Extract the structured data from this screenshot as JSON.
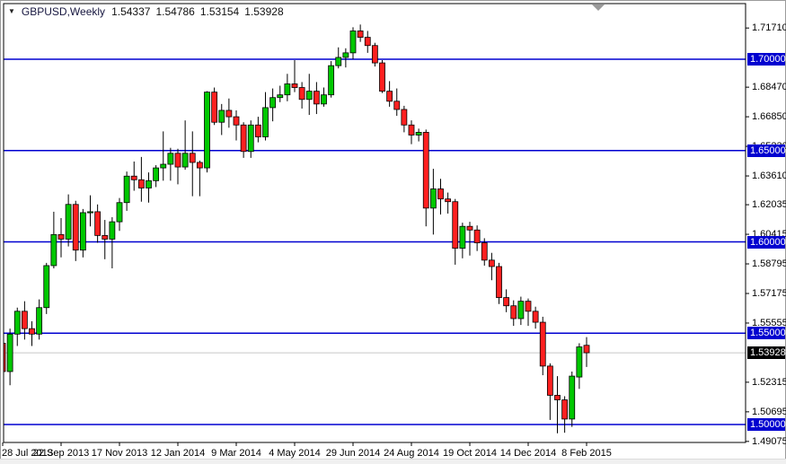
{
  "window": {
    "title_symbol": "GBPUSD,Weekly",
    "ohlc_readout": {
      "open": "1.54337",
      "high": "1.54786",
      "low": "1.53154",
      "close": "1.53928"
    }
  },
  "colors": {
    "background": "#FFFFFF",
    "frame": "#000000",
    "candle_up_fill": "#00C800",
    "candle_down_fill": "#FF2020",
    "candle_border": "#000000",
    "wick": "#000000",
    "level_line": "#0000D0",
    "level_label_bg": "#0000D0",
    "current_price_line": "#C8C8C8",
    "current_price_label_bg": "#000000",
    "axis_text": "#000000",
    "shift_marker": "#9A9A9A"
  },
  "y_axis": {
    "plain_labels": [
      {
        "text": "1.71710",
        "price": 1.7171
      },
      {
        "text": "1.68470",
        "price": 1.6847
      },
      {
        "text": "1.66850",
        "price": 1.6685
      },
      {
        "text": "1.65230",
        "price": 1.6523
      },
      {
        "text": "1.63610",
        "price": 1.6361
      },
      {
        "text": "1.62035",
        "price": 1.62035
      },
      {
        "text": "1.60415",
        "price": 1.60415
      },
      {
        "text": "1.58795",
        "price": 1.58795
      },
      {
        "text": "1.57175",
        "price": 1.57175
      },
      {
        "text": "1.55555",
        "price": 1.55555
      },
      {
        "text": "1.52315",
        "price": 1.52315
      },
      {
        "text": "1.50695",
        "price": 1.50695
      },
      {
        "text": "1.49075",
        "price": 1.49075
      }
    ],
    "level_labels": [
      {
        "text": "1.70000",
        "price": 1.7
      },
      {
        "text": "1.65000",
        "price": 1.65
      },
      {
        "text": "1.60000",
        "price": 1.6
      },
      {
        "text": "1.55000",
        "price": 1.55
      },
      {
        "text": "1.50000",
        "price": 1.5
      }
    ],
    "current_label": {
      "text": "1.53928",
      "price": 1.53928
    }
  },
  "x_axis": {
    "labels": [
      {
        "text": "28 Jul 2013",
        "week": 0
      },
      {
        "text": "22 Sep 2013",
        "week": 8
      },
      {
        "text": "17 Nov 2013",
        "week": 16
      },
      {
        "text": "12 Jan 2014",
        "week": 24
      },
      {
        "text": "9 Mar 2014",
        "week": 32
      },
      {
        "text": "4 May 2014",
        "week": 40
      },
      {
        "text": "29 Jun 2014",
        "week": 48
      },
      {
        "text": "24 Aug 2014",
        "week": 56
      },
      {
        "text": "19 Oct 2014",
        "week": 64
      },
      {
        "text": "14 Dec 2014",
        "week": 72
      },
      {
        "text": "8 Feb 2015",
        "week": 80
      }
    ]
  },
  "chart_data": {
    "type": "candlestick",
    "symbol": "GBPUSD",
    "timeframe": "Weekly",
    "title": "GBPUSD,Weekly 1.54337 1.54786 1.53154 1.53928",
    "grid": false,
    "legend_position": "none",
    "y_axis_range": [
      1.4885,
      1.73
    ],
    "horizontal_levels": [
      1.7,
      1.65,
      1.6,
      1.55,
      1.5
    ],
    "current_price": 1.53928,
    "candles": [
      {
        "d": "2013-07-28",
        "o": 1.5445,
        "h": 1.5475,
        "l": 1.524,
        "c": 1.529
      },
      {
        "d": "2013-08-04",
        "o": 1.529,
        "h": 1.5525,
        "l": 1.5215,
        "c": 1.5495
      },
      {
        "d": "2013-08-11",
        "o": 1.5495,
        "h": 1.564,
        "l": 1.543,
        "c": 1.562
      },
      {
        "d": "2013-08-18",
        "o": 1.562,
        "h": 1.5675,
        "l": 1.5465,
        "c": 1.5525
      },
      {
        "d": "2013-08-25",
        "o": 1.5525,
        "h": 1.5565,
        "l": 1.543,
        "c": 1.5495
      },
      {
        "d": "2013-09-01",
        "o": 1.5495,
        "h": 1.5685,
        "l": 1.5465,
        "c": 1.564
      },
      {
        "d": "2013-09-08",
        "o": 1.564,
        "h": 1.5885,
        "l": 1.5605,
        "c": 1.587
      },
      {
        "d": "2013-09-15",
        "o": 1.587,
        "h": 1.6165,
        "l": 1.5855,
        "c": 1.604
      },
      {
        "d": "2013-09-22",
        "o": 1.604,
        "h": 1.613,
        "l": 1.5915,
        "c": 1.6015
      },
      {
        "d": "2013-09-29",
        "o": 1.6015,
        "h": 1.626,
        "l": 1.5975,
        "c": 1.6205
      },
      {
        "d": "2013-10-06",
        "o": 1.6205,
        "h": 1.6225,
        "l": 1.5895,
        "c": 1.5955
      },
      {
        "d": "2013-10-13",
        "o": 1.5955,
        "h": 1.618,
        "l": 1.5915,
        "c": 1.616
      },
      {
        "d": "2013-10-20",
        "o": 1.616,
        "h": 1.6255,
        "l": 1.6085,
        "c": 1.6165
      },
      {
        "d": "2013-10-27",
        "o": 1.6165,
        "h": 1.6205,
        "l": 1.5995,
        "c": 1.6035
      },
      {
        "d": "2013-11-03",
        "o": 1.6035,
        "h": 1.612,
        "l": 1.5905,
        "c": 1.6015
      },
      {
        "d": "2013-11-10",
        "o": 1.6015,
        "h": 1.6135,
        "l": 1.5855,
        "c": 1.611
      },
      {
        "d": "2013-11-17",
        "o": 1.611,
        "h": 1.624,
        "l": 1.606,
        "c": 1.6215
      },
      {
        "d": "2013-11-24",
        "o": 1.6215,
        "h": 1.6385,
        "l": 1.617,
        "c": 1.636
      },
      {
        "d": "2013-12-01",
        "o": 1.636,
        "h": 1.644,
        "l": 1.628,
        "c": 1.634
      },
      {
        "d": "2013-12-08",
        "o": 1.634,
        "h": 1.6465,
        "l": 1.622,
        "c": 1.6295
      },
      {
        "d": "2013-12-15",
        "o": 1.6295,
        "h": 1.638,
        "l": 1.6215,
        "c": 1.6335
      },
      {
        "d": "2013-12-22",
        "o": 1.6335,
        "h": 1.642,
        "l": 1.63,
        "c": 1.6405
      },
      {
        "d": "2013-12-29",
        "o": 1.6405,
        "h": 1.6605,
        "l": 1.6335,
        "c": 1.6425
      },
      {
        "d": "2014-01-05",
        "o": 1.6425,
        "h": 1.6515,
        "l": 1.6335,
        "c": 1.6485
      },
      {
        "d": "2014-01-12",
        "o": 1.6485,
        "h": 1.651,
        "l": 1.6315,
        "c": 1.641
      },
      {
        "d": "2014-01-19",
        "o": 1.641,
        "h": 1.6665,
        "l": 1.6395,
        "c": 1.6485
      },
      {
        "d": "2014-01-26",
        "o": 1.6485,
        "h": 1.6605,
        "l": 1.625,
        "c": 1.6435
      },
      {
        "d": "2014-02-02",
        "o": 1.6435,
        "h": 1.6445,
        "l": 1.625,
        "c": 1.6405
      },
      {
        "d": "2014-02-09",
        "o": 1.6405,
        "h": 1.6825,
        "l": 1.638,
        "c": 1.682
      },
      {
        "d": "2014-02-16",
        "o": 1.682,
        "h": 1.6845,
        "l": 1.664,
        "c": 1.6655
      },
      {
        "d": "2014-02-23",
        "o": 1.6655,
        "h": 1.6755,
        "l": 1.6585,
        "c": 1.672
      },
      {
        "d": "2014-03-02",
        "o": 1.672,
        "h": 1.6785,
        "l": 1.6625,
        "c": 1.6685
      },
      {
        "d": "2014-03-09",
        "o": 1.6685,
        "h": 1.672,
        "l": 1.6555,
        "c": 1.664
      },
      {
        "d": "2014-03-16",
        "o": 1.664,
        "h": 1.6655,
        "l": 1.646,
        "c": 1.6495
      },
      {
        "d": "2014-03-23",
        "o": 1.6495,
        "h": 1.6665,
        "l": 1.646,
        "c": 1.664
      },
      {
        "d": "2014-03-30",
        "o": 1.664,
        "h": 1.6685,
        "l": 1.6545,
        "c": 1.6575
      },
      {
        "d": "2014-04-06",
        "o": 1.6575,
        "h": 1.682,
        "l": 1.6555,
        "c": 1.6735
      },
      {
        "d": "2014-04-13",
        "o": 1.6735,
        "h": 1.684,
        "l": 1.666,
        "c": 1.679
      },
      {
        "d": "2014-04-20",
        "o": 1.679,
        "h": 1.6855,
        "l": 1.6765,
        "c": 1.6805
      },
      {
        "d": "2014-04-27",
        "o": 1.6805,
        "h": 1.692,
        "l": 1.677,
        "c": 1.6865
      },
      {
        "d": "2014-05-04",
        "o": 1.6865,
        "h": 1.6995,
        "l": 1.682,
        "c": 1.6845
      },
      {
        "d": "2014-05-11",
        "o": 1.6845,
        "h": 1.6875,
        "l": 1.673,
        "c": 1.678
      },
      {
        "d": "2014-05-18",
        "o": 1.678,
        "h": 1.692,
        "l": 1.6695,
        "c": 1.6825
      },
      {
        "d": "2014-05-25",
        "o": 1.6825,
        "h": 1.6875,
        "l": 1.67,
        "c": 1.6755
      },
      {
        "d": "2014-06-01",
        "o": 1.6755,
        "h": 1.6845,
        "l": 1.674,
        "c": 1.6805
      },
      {
        "d": "2014-06-08",
        "o": 1.6805,
        "h": 1.699,
        "l": 1.679,
        "c": 1.6965
      },
      {
        "d": "2014-06-15",
        "o": 1.6965,
        "h": 1.7065,
        "l": 1.695,
        "c": 1.701
      },
      {
        "d": "2014-06-22",
        "o": 1.701,
        "h": 1.706,
        "l": 1.6955,
        "c": 1.7035
      },
      {
        "d": "2014-06-29",
        "o": 1.7035,
        "h": 1.7175,
        "l": 1.7,
        "c": 1.7155
      },
      {
        "d": "2014-07-06",
        "o": 1.7155,
        "h": 1.719,
        "l": 1.7095,
        "c": 1.712
      },
      {
        "d": "2014-07-13",
        "o": 1.712,
        "h": 1.7155,
        "l": 1.7035,
        "c": 1.7075
      },
      {
        "d": "2014-07-20",
        "o": 1.7075,
        "h": 1.709,
        "l": 1.696,
        "c": 1.698
      },
      {
        "d": "2014-07-27",
        "o": 1.698,
        "h": 1.6995,
        "l": 1.6815,
        "c": 1.6825
      },
      {
        "d": "2014-08-03",
        "o": 1.6825,
        "h": 1.688,
        "l": 1.674,
        "c": 1.677
      },
      {
        "d": "2014-08-10",
        "o": 1.677,
        "h": 1.684,
        "l": 1.669,
        "c": 1.6725
      },
      {
        "d": "2014-08-17",
        "o": 1.6725,
        "h": 1.6745,
        "l": 1.66,
        "c": 1.664
      },
      {
        "d": "2014-08-24",
        "o": 1.664,
        "h": 1.6665,
        "l": 1.6535,
        "c": 1.6585
      },
      {
        "d": "2014-08-31",
        "o": 1.6585,
        "h": 1.662,
        "l": 1.655,
        "c": 1.66
      },
      {
        "d": "2014-09-07",
        "o": 1.66,
        "h": 1.6615,
        "l": 1.6085,
        "c": 1.6185
      },
      {
        "d": "2014-09-14",
        "o": 1.6185,
        "h": 1.64,
        "l": 1.604,
        "c": 1.629
      },
      {
        "d": "2014-09-21",
        "o": 1.629,
        "h": 1.6345,
        "l": 1.615,
        "c": 1.6235
      },
      {
        "d": "2014-09-28",
        "o": 1.6235,
        "h": 1.627,
        "l": 1.6155,
        "c": 1.622
      },
      {
        "d": "2014-10-05",
        "o": 1.622,
        "h": 1.6235,
        "l": 1.5875,
        "c": 1.5965
      },
      {
        "d": "2014-10-12",
        "o": 1.5965,
        "h": 1.6105,
        "l": 1.591,
        "c": 1.6085
      },
      {
        "d": "2014-10-19",
        "o": 1.6085,
        "h": 1.611,
        "l": 1.5925,
        "c": 1.6065
      },
      {
        "d": "2014-10-26",
        "o": 1.6065,
        "h": 1.609,
        "l": 1.595,
        "c": 1.5995
      },
      {
        "d": "2014-11-02",
        "o": 1.5995,
        "h": 1.602,
        "l": 1.587,
        "c": 1.59
      },
      {
        "d": "2014-11-09",
        "o": 1.59,
        "h": 1.594,
        "l": 1.579,
        "c": 1.5865
      },
      {
        "d": "2014-11-16",
        "o": 1.5865,
        "h": 1.5885,
        "l": 1.566,
        "c": 1.5695
      },
      {
        "d": "2014-11-23",
        "o": 1.5695,
        "h": 1.574,
        "l": 1.5615,
        "c": 1.565
      },
      {
        "d": "2014-11-30",
        "o": 1.565,
        "h": 1.568,
        "l": 1.554,
        "c": 1.558
      },
      {
        "d": "2014-12-07",
        "o": 1.558,
        "h": 1.57,
        "l": 1.5545,
        "c": 1.5675
      },
      {
        "d": "2014-12-14",
        "o": 1.5675,
        "h": 1.569,
        "l": 1.554,
        "c": 1.562
      },
      {
        "d": "2014-12-21",
        "o": 1.562,
        "h": 1.5645,
        "l": 1.5525,
        "c": 1.556
      },
      {
        "d": "2014-12-28",
        "o": 1.556,
        "h": 1.559,
        "l": 1.527,
        "c": 1.532
      },
      {
        "d": "2015-01-04",
        "o": 1.532,
        "h": 1.5335,
        "l": 1.5025,
        "c": 1.516
      },
      {
        "d": "2015-01-11",
        "o": 1.516,
        "h": 1.5265,
        "l": 1.4952,
        "c": 1.5135
      },
      {
        "d": "2015-01-18",
        "o": 1.5135,
        "h": 1.5155,
        "l": 1.4955,
        "c": 1.503
      },
      {
        "d": "2015-01-25",
        "o": 1.503,
        "h": 1.529,
        "l": 1.4987,
        "c": 1.5265
      },
      {
        "d": "2015-02-01",
        "o": 1.526,
        "h": 1.5445,
        "l": 1.5195,
        "c": 1.5425
      },
      {
        "d": "2015-02-08",
        "o": 1.54337,
        "h": 1.54786,
        "l": 1.53154,
        "c": 1.53928
      }
    ]
  }
}
